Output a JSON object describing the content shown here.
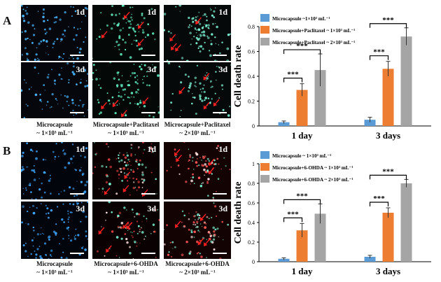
{
  "figure": {
    "panel_a": {
      "letter": "A",
      "time_tags": [
        "1d",
        "3d"
      ],
      "captions": [
        {
          "line1": "Microcapsule",
          "line2": "~ 1×10³ mL⁻¹"
        },
        {
          "line1": "Microcapsule+Paclitaxel",
          "line2": "~ 1×10³ mL⁻¹"
        },
        {
          "line1": "Microcapsule+Paclitaxel",
          "line2": "~ 2×10³ mL⁻¹"
        }
      ]
    },
    "panel_b": {
      "letter": "B",
      "time_tags": [
        "1d",
        "3d"
      ],
      "captions": [
        {
          "line1": "Microcapsule",
          "line2": "~ 1×10³ mL⁻¹"
        },
        {
          "line1": "Microcapsule+6-OHDA",
          "line2": "~ 1×10³ mL⁻¹"
        },
        {
          "line1": "Microcapsule+6-OHDA",
          "line2": "~ 2×10³ mL⁻¹"
        }
      ]
    },
    "colors": {
      "blue": "#5b9bd5",
      "orange": "#ed7d31",
      "gray": "#a5a5a5",
      "arrow": "#ff2020"
    }
  },
  "chart_data": [
    {
      "type": "bar",
      "ylabel": "Cell death rate",
      "categories": [
        "1 day",
        "3 days"
      ],
      "ylim": [
        0,
        0.8
      ],
      "yticks": [
        "0",
        "0.2",
        "0.4",
        "0.6",
        "0.8"
      ],
      "series": [
        {
          "name": "Microcapsule ~1×10³ mL⁻¹",
          "values": [
            0.03,
            0.05
          ],
          "errors": [
            0.01,
            0.02
          ]
        },
        {
          "name": "Microcapsule+Paclitaxel ~ 1×10³ mL⁻¹",
          "values": [
            0.29,
            0.46
          ],
          "errors": [
            0.05,
            0.06
          ]
        },
        {
          "name": "Microcapsule+Paclitaxel ~ 2×10³ mL⁻¹",
          "values": [
            0.45,
            0.72
          ],
          "errors": [
            0.13,
            0.07
          ]
        }
      ],
      "annotations": [
        "***",
        "***",
        "***",
        "***"
      ]
    },
    {
      "type": "bar",
      "ylabel": "Cell death rate",
      "categories": [
        "1 day",
        "3 days"
      ],
      "ylim": [
        0,
        1.0
      ],
      "yticks": [
        "0",
        "0.2",
        "0.4",
        "0.6",
        "0.8",
        "1"
      ],
      "series": [
        {
          "name": "Microcapsule ~ 1×10³ mL⁻¹",
          "values": [
            0.03,
            0.05
          ],
          "errors": [
            0.01,
            0.015
          ]
        },
        {
          "name": "Microcapsule+6-OHDA ~ 1×10³ mL⁻¹",
          "values": [
            0.32,
            0.5
          ],
          "errors": [
            0.07,
            0.05
          ]
        },
        {
          "name": "Microcapsule+6-OHDA ~ 2×10³ mL⁻¹",
          "values": [
            0.49,
            0.8
          ],
          "errors": [
            0.1,
            0.04
          ]
        }
      ],
      "annotations": [
        "***",
        "***",
        "***",
        "***"
      ]
    }
  ]
}
